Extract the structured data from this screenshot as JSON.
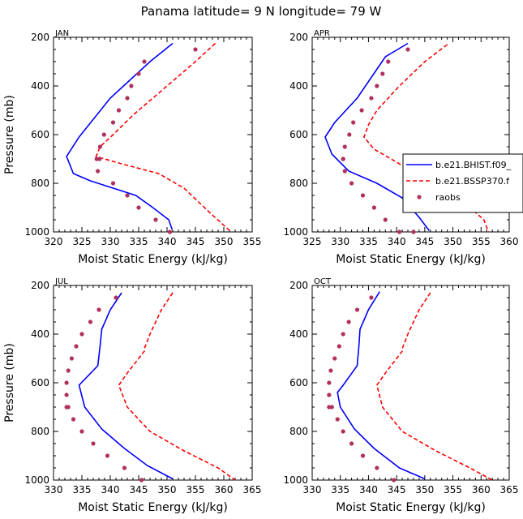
{
  "title": "Panama  latitude= 9 N longitude= 79 W",
  "colors": {
    "hist": "#0000ff",
    "ssp": "#ff0000",
    "raobs": "#b03060"
  },
  "legend": [
    "b.e21.BHIST.f09_",
    "b.e21.BSSP370.f",
    "raobs"
  ],
  "chart_data": [
    {
      "type": "line",
      "panel": "JAN",
      "xlabel": "Moist Static Energy (kJ/kg)",
      "ylabel": "Pressure (mb)",
      "xlim": [
        320,
        355
      ],
      "xticks": [
        320,
        325,
        330,
        335,
        340,
        345,
        350,
        355
      ],
      "ylim": [
        1000,
        200
      ],
      "yticks": [
        200,
        400,
        600,
        800,
        1000
      ],
      "grid": false,
      "series": [
        {
          "name": "b.e21.BHIST.f09_",
          "style": "solid",
          "x": [
            341,
            337,
            330,
            324.5,
            322.3,
            323.5,
            326.5,
            330.5,
            334.5,
            337.5,
            340.3,
            340.9
          ],
          "y": [
            225,
            300,
            450,
            610,
            690,
            760,
            790,
            820,
            850,
            900,
            950,
            990
          ]
        },
        {
          "name": "b.e21.BSSP370.f",
          "style": "dashed",
          "x": [
            348.5,
            345,
            340,
            334,
            330.5,
            328.2,
            327.5,
            332,
            338.5,
            343,
            347.5,
            351.3
          ],
          "y": [
            225,
            300,
            400,
            520,
            600,
            650,
            690,
            720,
            760,
            820,
            920,
            1000
          ]
        },
        {
          "name": "raobs",
          "style": "dots",
          "x": [
            345,
            336,
            335,
            333.7,
            333,
            331.5,
            330.5,
            328.9,
            328.2,
            328.1,
            327.6,
            327.8,
            330.5,
            333,
            335,
            338,
            340.5
          ],
          "y": [
            250,
            300,
            350,
            400,
            450,
            500,
            550,
            600,
            650,
            700,
            700,
            750,
            800,
            850,
            900,
            950,
            1000
          ]
        }
      ]
    },
    {
      "type": "line",
      "panel": "APR",
      "xlabel": "Moist Static Energy (kJ/kg)",
      "ylabel": "",
      "xlim": [
        325,
        360
      ],
      "xticks": [
        325,
        330,
        335,
        340,
        345,
        350,
        355,
        360
      ],
      "ylim": [
        1000,
        200
      ],
      "yticks": [
        200,
        400,
        600,
        800,
        1000
      ],
      "grid": false,
      "legend_position": "right",
      "series": [
        {
          "name": "b.e21.BHIST.f09_",
          "style": "solid",
          "x": [
            342,
            338,
            333,
            329,
            327.3,
            328.5,
            331.5,
            336.5,
            341,
            344,
            345.8
          ],
          "y": [
            225,
            280,
            450,
            550,
            610,
            680,
            750,
            800,
            860,
            940,
            995
          ]
        },
        {
          "name": "b.e21.BSSP370.f",
          "style": "dashed",
          "x": [
            349,
            345,
            340.5,
            336.5,
            335,
            334.2,
            336,
            340.5,
            347,
            352,
            355.5,
            356.3
          ],
          "y": [
            230,
            300,
            400,
            500,
            560,
            610,
            660,
            720,
            800,
            880,
            950,
            1000
          ]
        },
        {
          "name": "raobs",
          "style": "dots",
          "x": [
            342,
            338.5,
            337.5,
            336.5,
            335.5,
            333.8,
            332.3,
            331.6,
            330.8,
            330.5,
            330.5,
            330.8,
            332,
            334,
            336,
            338,
            340.5,
            343
          ],
          "y": [
            250,
            300,
            350,
            400,
            450,
            500,
            550,
            600,
            650,
            700,
            700,
            750,
            800,
            850,
            900,
            950,
            1000,
            1000
          ]
        }
      ]
    },
    {
      "type": "line",
      "panel": "JUL",
      "xlabel": "Moist Static Energy (kJ/kg)",
      "ylabel": "Pressure (mb)",
      "xlim": [
        330,
        365
      ],
      "xticks": [
        330,
        335,
        340,
        345,
        350,
        355,
        360,
        365
      ],
      "ylim": [
        1000,
        200
      ],
      "yticks": [
        200,
        400,
        600,
        800,
        1000
      ],
      "grid": false,
      "series": [
        {
          "name": "b.e21.BHIST.f09_",
          "style": "solid",
          "x": [
            342,
            340,
            338.5,
            338.2,
            337.8,
            334.5,
            335.5,
            338.5,
            342.5,
            346.5,
            351
          ],
          "y": [
            230,
            300,
            380,
            450,
            530,
            610,
            700,
            790,
            870,
            940,
            995
          ]
        },
        {
          "name": "b.e21.BSSP370.f",
          "style": "dashed",
          "x": [
            351,
            349,
            347,
            346,
            346,
            343,
            341.5,
            343,
            347,
            353,
            359,
            362
          ],
          "y": [
            230,
            300,
            400,
            460,
            470,
            560,
            610,
            700,
            800,
            880,
            950,
            1000
          ]
        },
        {
          "name": "raobs",
          "style": "dots",
          "x": [
            341,
            338,
            336.5,
            335,
            334,
            333.2,
            332.6,
            332.3,
            332.3,
            332.3,
            332.6,
            333.5,
            335,
            337,
            339.5,
            342.5,
            345.5
          ],
          "y": [
            250,
            300,
            350,
            400,
            450,
            500,
            550,
            600,
            650,
            700,
            700,
            750,
            800,
            850,
            900,
            950,
            1000
          ]
        }
      ]
    },
    {
      "type": "line",
      "panel": "OCT",
      "xlabel": "Moist Static Energy (kJ/kg)",
      "ylabel": "",
      "xlim": [
        330,
        365
      ],
      "xticks": [
        330,
        335,
        340,
        345,
        350,
        355,
        360,
        365
      ],
      "ylim": [
        1000,
        200
      ],
      "yticks": [
        200,
        400,
        600,
        800,
        1000
      ],
      "grid": false,
      "series": [
        {
          "name": "b.e21.BHIST.f09_",
          "style": "solid",
          "x": [
            342,
            340,
            338.5,
            338.3,
            338,
            335.5,
            334.5,
            335,
            337.5,
            341,
            345.5,
            350
          ],
          "y": [
            225,
            300,
            380,
            450,
            530,
            610,
            640,
            700,
            790,
            870,
            950,
            995
          ]
        },
        {
          "name": "b.e21.BSSP370.f",
          "style": "dashed",
          "x": [
            351,
            349,
            347,
            346,
            346,
            343,
            341.5,
            342.5,
            346,
            352,
            358,
            362
          ],
          "y": [
            230,
            300,
            400,
            460,
            470,
            560,
            610,
            700,
            800,
            880,
            950,
            1000
          ]
        },
        {
          "name": "raobs",
          "style": "dots",
          "x": [
            340.5,
            338,
            336.5,
            335.5,
            334.8,
            334,
            333.3,
            333,
            333,
            333,
            333.5,
            334.5,
            335.5,
            337,
            339,
            341.5,
            344.5
          ],
          "y": [
            250,
            300,
            350,
            400,
            450,
            500,
            550,
            600,
            650,
            700,
            700,
            750,
            800,
            850,
            900,
            950,
            1000
          ]
        }
      ]
    }
  ]
}
